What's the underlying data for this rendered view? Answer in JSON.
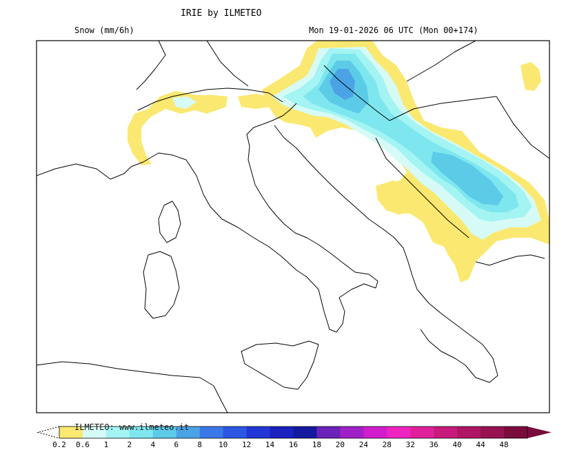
{
  "header": {
    "title": "IRIE by ILMETEO",
    "variable": "Snow (mm/6h)",
    "valid_time": "Mon 19-01-2026 06 UTC (Mon 00+174)"
  },
  "watermark": "ILMETEO: www.ilmeteo.it",
  "colorbar": {
    "classes": [
      {
        "label": "0.2",
        "color": "#fbe870"
      },
      {
        "label": "0.6",
        "color": "#d6fbf6"
      },
      {
        "label": "1",
        "color": "#a3f4f2"
      },
      {
        "label": "2",
        "color": "#7ee6ee"
      },
      {
        "label": "4",
        "color": "#5ccbe8"
      },
      {
        "label": "6",
        "color": "#4ba3e6"
      },
      {
        "label": "8",
        "color": "#3a78e8"
      },
      {
        "label": "10",
        "color": "#2c56e4"
      },
      {
        "label": "12",
        "color": "#2236d8"
      },
      {
        "label": "14",
        "color": "#1a22c0"
      },
      {
        "label": "16",
        "color": "#14199f"
      },
      {
        "label": "18",
        "color": "#6a22b8"
      },
      {
        "label": "20",
        "color": "#a020c8"
      },
      {
        "label": "24",
        "color": "#d01ecc"
      },
      {
        "label": "28",
        "color": "#ee24c0"
      },
      {
        "label": "32",
        "color": "#e0209a"
      },
      {
        "label": "36",
        "color": "#c81a7c"
      },
      {
        "label": "40",
        "color": "#b01464"
      },
      {
        "label": "44",
        "color": "#961250"
      },
      {
        "label": "48",
        "color": "#7a0c3c"
      }
    ],
    "end_color": "#7a0c3c"
  }
}
